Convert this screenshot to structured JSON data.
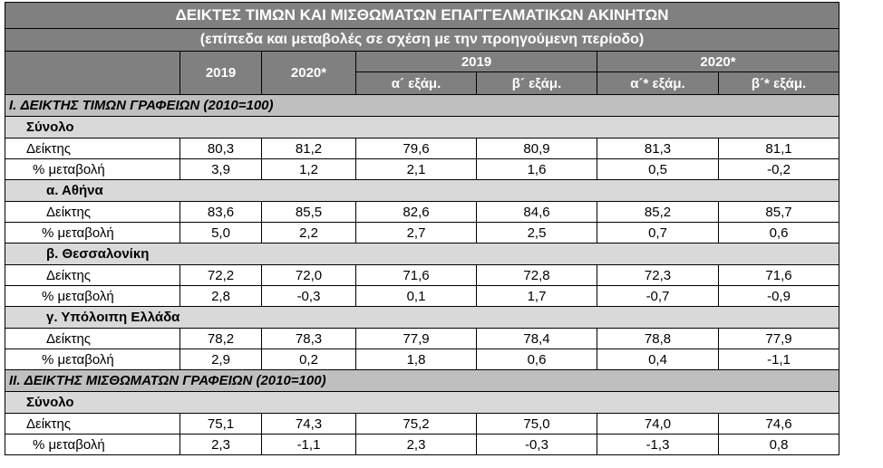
{
  "header": {
    "title": "ΔΕΙΚΤΕΣ ΤΙΜΩΝ ΚΑΙ ΜΙΣΘΩΜΑΤΩΝ ΕΠΑΓΓΕΛΜΑΤΙΚΩΝ ΑΚΙΝΗΤΩΝ",
    "subtitle": "(επίπεδα και μεταβολές σε σχέση με την προηγούμενη περίοδο)"
  },
  "columns": {
    "annual": [
      "2019",
      "2020*"
    ],
    "groups": [
      "2019",
      "2020*"
    ],
    "halves": [
      "α´  εξάμ.",
      "β´  εξάμ.",
      "α´*  εξάμ.",
      "β´*  εξάμ."
    ]
  },
  "sections": [
    {
      "title": "I. ΔΕΙΚΤΗΣ ΤΙΜΩΝ ΓΡΑΦΕΙΩΝ (2010=100)",
      "groups": [
        {
          "title": "Σύνολο",
          "rows": [
            {
              "label": "Δείκτης",
              "values": [
                "80,3",
                "81,2",
                "79,6",
                "80,9",
                "81,3",
                "81,1"
              ]
            },
            {
              "label": "% μεταβολή",
              "values": [
                "3,9",
                "1,2",
                "2,1",
                "1,6",
                "0,5",
                "-0,2"
              ]
            }
          ]
        },
        {
          "title": "α.  Αθήνα",
          "rows": [
            {
              "label": "Δείκτης",
              "values": [
                "83,6",
                "85,5",
                "82,6",
                "84,6",
                "85,2",
                "85,7"
              ]
            },
            {
              "label": "% μεταβολή",
              "values": [
                "5,0",
                "2,2",
                "2,7",
                "2,5",
                "0,7",
                "0,6"
              ]
            }
          ]
        },
        {
          "title": "β.  Θεσσαλονίκη",
          "rows": [
            {
              "label": "Δείκτης",
              "values": [
                "72,2",
                "72,0",
                "71,6",
                "72,8",
                "72,3",
                "71,6"
              ]
            },
            {
              "label": "% μεταβολή",
              "values": [
                "2,8",
                "-0,3",
                "0,1",
                "1,7",
                "-0,7",
                "-0,9"
              ]
            }
          ]
        },
        {
          "title": "γ. Υπόλοιπη Ελλάδα",
          "rows": [
            {
              "label": "Δείκτης",
              "values": [
                "78,2",
                "78,3",
                "77,9",
                "78,4",
                "78,8",
                "77,9"
              ]
            },
            {
              "label": "% μεταβολή",
              "values": [
                "2,9",
                "0,2",
                "1,8",
                "0,6",
                "0,4",
                "-1,1"
              ]
            }
          ]
        }
      ]
    },
    {
      "title": "II. ΔΕΙΚΤΗΣ ΜΙΣΘΩΜΑΤΩΝ ΓΡΑΦΕΙΩΝ (2010=100)",
      "groups": [
        {
          "title": "Σύνολο",
          "rows": [
            {
              "label": "Δείκτης",
              "values": [
                "75,1",
                "74,3",
                "75,2",
                "75,0",
                "74,0",
                "74,6"
              ]
            },
            {
              "label": "% μεταβολή",
              "values": [
                "2,3",
                "-1,1",
                "2,3",
                "-0,3",
                "-1,3",
                "0,8"
              ]
            }
          ]
        }
      ]
    }
  ]
}
